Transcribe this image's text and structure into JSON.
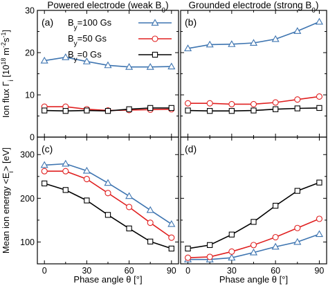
{
  "chart_data": {
    "type": "line",
    "x": [
      0,
      15,
      30,
      45,
      60,
      75,
      90
    ],
    "xlim": [
      -5,
      95
    ],
    "xticks": [
      0,
      30,
      60,
      90
    ],
    "xlabel": "Phase angle θ [°]",
    "columns": [
      {
        "title": "Powered electrode (weak B",
        "title_sub": "0",
        "title_end": ")"
      },
      {
        "title": "Grounded electrode (strong B",
        "title_sub": "0",
        "title_end": ")"
      }
    ],
    "rows": [
      {
        "ylabel": "Ion flux Γ",
        "ylabel_sub": "i",
        "ylabel_rest": " [10",
        "ylabel_sup": "18",
        "ylabel_rest2": " m",
        "ylabel_sup2": "-2",
        "ylabel_rest3": "s",
        "ylabel_sup3": "-1",
        "ylabel_end": "]",
        "ylim": [
          0,
          30
        ],
        "yticks": [
          0,
          10,
          20,
          30
        ]
      },
      {
        "ylabel": "Mean ion energy <E",
        "ylabel_sub": "i",
        "ylabel_end": "> [eV]",
        "ylim": [
          50,
          340
        ],
        "yticks": [
          100,
          200,
          300
        ]
      }
    ],
    "panels": [
      {
        "label": "(a)",
        "col": 0,
        "row": 0,
        "series": [
          {
            "name": "By=100 Gs",
            "marker": "triangle",
            "color": "#3d74b0",
            "values": [
              18.1,
              18.9,
              17.9,
              17.0,
              16.6,
              16.6,
              16.7
            ]
          },
          {
            "name": "By=50 Gs",
            "marker": "circle",
            "color": "#e02020",
            "values": [
              7.2,
              7.2,
              6.6,
              6.3,
              6.4,
              6.5,
              6.6
            ]
          },
          {
            "name": "By=0 Gs",
            "marker": "square",
            "color": "#000000",
            "values": [
              6.3,
              6.2,
              6.3,
              6.2,
              6.6,
              6.9,
              6.9
            ]
          }
        ]
      },
      {
        "label": "(b)",
        "col": 1,
        "row": 0,
        "series": [
          {
            "name": "By=100 Gs",
            "marker": "triangle",
            "color": "#3d74b0",
            "values": [
              21.0,
              21.9,
              22.0,
              22.3,
              23.2,
              25.1,
              27.3
            ]
          },
          {
            "name": "By=50 Gs",
            "marker": "circle",
            "color": "#e02020",
            "values": [
              8.0,
              8.0,
              7.8,
              7.8,
              8.2,
              8.9,
              9.6
            ]
          },
          {
            "name": "By=0 Gs",
            "marker": "square",
            "color": "#000000",
            "values": [
              6.3,
              6.2,
              6.2,
              6.3,
              6.6,
              6.8,
              6.9
            ]
          }
        ]
      },
      {
        "label": "(c)",
        "col": 0,
        "row": 1,
        "series": [
          {
            "name": "By=100 Gs",
            "marker": "triangle",
            "color": "#3d74b0",
            "values": [
              276,
              279,
              263,
              235,
              205,
              173,
              141
            ]
          },
          {
            "name": "By=50 Gs",
            "marker": "circle",
            "color": "#e02020",
            "values": [
              262,
              262,
              244,
              212,
              180,
              144,
              110
            ]
          },
          {
            "name": "By=0 Gs",
            "marker": "square",
            "color": "#000000",
            "values": [
              234,
              219,
              195,
              162,
              131,
              101,
              85
            ]
          }
        ]
      },
      {
        "label": "(d)",
        "col": 1,
        "row": 1,
        "series": [
          {
            "name": "By=100 Gs",
            "marker": "triangle",
            "color": "#3d74b0",
            "values": [
              60,
              60,
              64,
              76,
              89,
              100,
              118
            ]
          },
          {
            "name": "By=50 Gs",
            "marker": "circle",
            "color": "#e02020",
            "values": [
              64,
              66,
              78,
              93,
              111,
              132,
              153
            ]
          },
          {
            "name": "By=0 Gs",
            "marker": "square",
            "color": "#000000",
            "values": [
              85,
              93,
              117,
              146,
              183,
              217,
              236
            ]
          }
        ]
      }
    ],
    "legend": {
      "location": "panel (a), top-right",
      "entries": [
        {
          "pre": "B",
          "sub": "y",
          "post": "=100 Gs",
          "marker": "triangle",
          "color": "#3d74b0"
        },
        {
          "pre": "B",
          "sub": "y",
          "post": "=50 Gs",
          "marker": "circle",
          "color": "#e02020"
        },
        {
          "pre": "B",
          "sub": "y",
          "post": "=0 Gs",
          "marker": "square",
          "color": "#000000"
        }
      ]
    }
  }
}
